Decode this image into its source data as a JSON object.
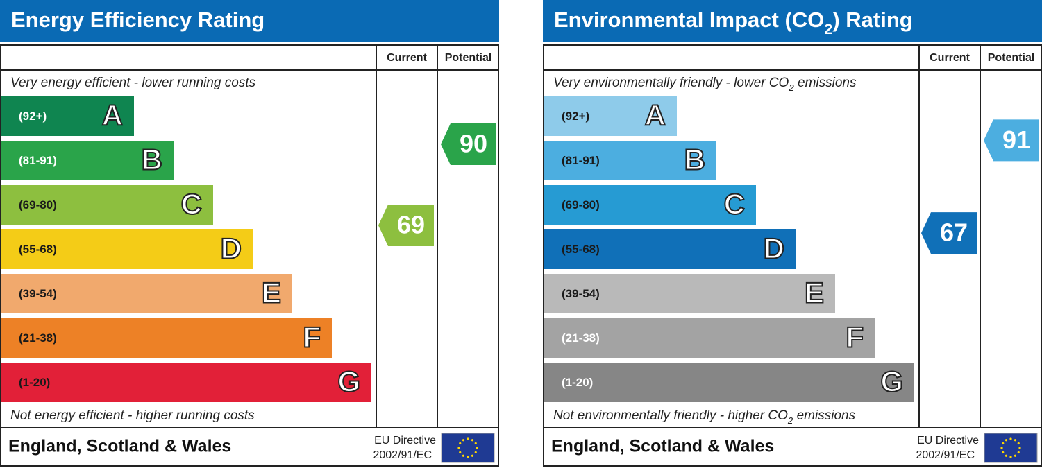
{
  "chart_data": [
    {
      "type": "epc",
      "title": [
        "Energy Efficiency Rating"
      ],
      "columns": [
        "Current",
        "Potential"
      ],
      "top_note": [
        "Very energy efficient - lower running costs"
      ],
      "bottom_note": [
        "Not energy efficient - higher running costs"
      ],
      "bands": [
        {
          "range": "(92+)",
          "letter": "A",
          "color": "#0f8550",
          "text_color": "#ffffff"
        },
        {
          "range": "(81-91)",
          "letter": "B",
          "color": "#2aa44a",
          "text_color": "#ffffff"
        },
        {
          "range": "(69-80)",
          "letter": "C",
          "color": "#8dbf3f",
          "text_color": "#1a1a1a"
        },
        {
          "range": "(55-68)",
          "letter": "D",
          "color": "#f4cc17",
          "text_color": "#1a1a1a"
        },
        {
          "range": "(39-54)",
          "letter": "E",
          "color": "#f1a96d",
          "text_color": "#1a1a1a"
        },
        {
          "range": "(21-38)",
          "letter": "F",
          "color": "#ed8126",
          "text_color": "#1a1a1a"
        },
        {
          "range": "(1-20)",
          "letter": "G",
          "color": "#e22038",
          "text_color": "#1a1a1a"
        }
      ],
      "current": 69,
      "current_color": "#8dbf3f",
      "potential": 90,
      "potential_color": "#2aa44a",
      "footer": "England, Scotland & Wales",
      "directive": [
        "EU Directive",
        "2002/91/EC"
      ]
    },
    {
      "type": "epc",
      "title": [
        "Environmental Impact (CO",
        "2",
        ") Rating"
      ],
      "columns": [
        "Current",
        "Potential"
      ],
      "top_note": [
        "Very environmentally friendly - lower CO",
        "2",
        " emissions"
      ],
      "bottom_note": [
        "Not environmentally friendly - higher CO",
        "2",
        " emissions"
      ],
      "bands": [
        {
          "range": "(92+)",
          "letter": "A",
          "color": "#8ecbea",
          "text_color": "#1a1a1a"
        },
        {
          "range": "(81-91)",
          "letter": "B",
          "color": "#4caee0",
          "text_color": "#1a1a1a"
        },
        {
          "range": "(69-80)",
          "letter": "C",
          "color": "#269bd3",
          "text_color": "#1a1a1a"
        },
        {
          "range": "(55-68)",
          "letter": "D",
          "color": "#1070b8",
          "text_color": "#1a1a1a"
        },
        {
          "range": "(39-54)",
          "letter": "E",
          "color": "#b9b9b9",
          "text_color": "#1a1a1a"
        },
        {
          "range": "(21-38)",
          "letter": "F",
          "color": "#a3a3a3",
          "text_color": "#ffffff"
        },
        {
          "range": "(1-20)",
          "letter": "G",
          "color": "#868686",
          "text_color": "#ffffff"
        }
      ],
      "current": 67,
      "current_color": "#1070b8",
      "potential": 91,
      "potential_color": "#4caee0",
      "footer": "England, Scotland & Wales",
      "directive": [
        "EU Directive",
        "2002/91/EC"
      ]
    }
  ]
}
